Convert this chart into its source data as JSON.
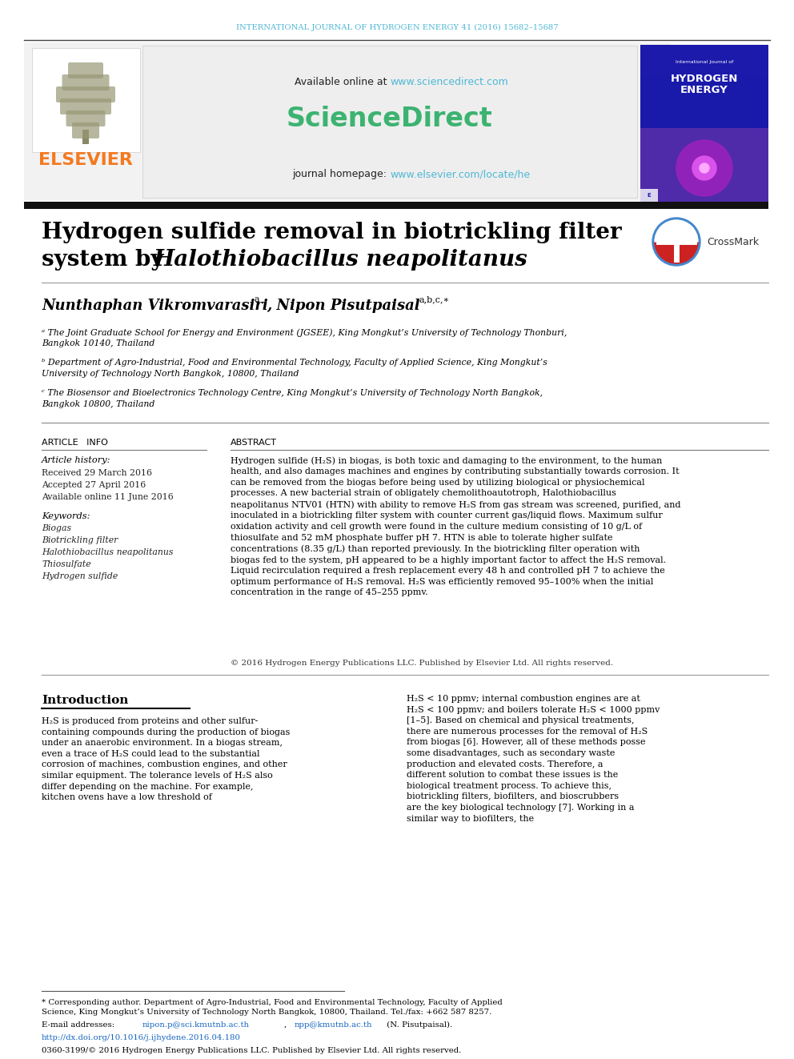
{
  "journal_header": "INTERNATIONAL JOURNAL OF HYDROGEN ENERGY 41 (2016) 15682–15687",
  "journal_header_color": "#4db8d4",
  "sciencedirect_url": "www.sciencedirect.com",
  "sciencedirect_logo_color": "#3cb371",
  "journal_homepage_url": "www.elsevier.com/locate/he",
  "elsevier_text": "ELSEVIER",
  "elsevier_color": "#f47920",
  "header_box_bg": "#f0f0f0",
  "title_line1": "Hydrogen sulfide removal in biotrickling filter",
  "title_line2": "system by ",
  "title_italic": "Halothiobacillus neapolitanus",
  "affil_a": "ᵃ The Joint Graduate School for Energy and Environment (JGSEE), King Mongkut’s University of Technology Thonburi,\nBangkok 10140, Thailand",
  "affil_b": "ᵇ Department of Agro-Industrial, Food and Environmental Technology, Faculty of Applied Science, King Mongkut’s\nUniversity of Technology North Bangkok, 10800, Thailand",
  "affil_c": "ᶜ The Biosensor and Bioelectronics Technology Centre, King Mongkut’s University of Technology North Bangkok,\nBangkok 10800, Thailand",
  "article_info_title": "ARTICLE   INFO",
  "article_history_title": "Article history:",
  "received": "Received 29 March 2016",
  "accepted": "Accepted 27 April 2016",
  "available": "Available online 11 June 2016",
  "keywords_title": "Keywords:",
  "keywords": [
    "Biogas",
    "Biotrickling filter",
    "Halothiobacillus neapolitanus",
    "Thiosulfate",
    "Hydrogen sulfide"
  ],
  "abstract_title": "ABSTRACT",
  "abstract_text": "Hydrogen sulfide (H₂S) in biogas, is both toxic and damaging to the environment, to the human health, and also damages machines and engines by contributing substantially towards corrosion. It can be removed from the biogas before being used by utilizing biological or physiochemical processes. A new bacterial strain of obligately chemolithoautotroph, Halothiobacillus neapolitanus NTV01 (HTN) with ability to remove H₂S from gas stream was screened, purified, and inoculated in a biotrickling filter system with counter current gas/liquid flows. Maximum sulfur oxidation activity and cell growth were found in the culture medium consisting of 10 g/L of thiosulfate and 52 mM phosphate buffer pH 7. HTN is able to tolerate higher sulfate concentrations (8.35 g/L) than reported previously. In the biotrickling filter operation with biogas fed to the system, pH appeared to be a highly important factor to affect the H₂S removal. Liquid recirculation required a fresh replacement every 48 h and controlled pH 7 to achieve the optimum performance of H₂S removal. H₂S was efficiently removed 95–100% when the initial concentration in the range of 45–255 ppmv.",
  "copyright_text": "© 2016 Hydrogen Energy Publications LLC. Published by Elsevier Ltd. All rights reserved.",
  "intro_title": "Introduction",
  "intro_col1": "H₂S is produced from proteins and other sulfur-containing compounds during the production of biogas under an anaerobic environment. In a biogas stream, even a trace of H₂S could lead to the substantial corrosion of machines, combustion engines, and other similar equipment. The tolerance levels of H₂S also differ depending on the machine. For example, kitchen ovens have a low threshold of",
  "intro_col2": "H₂S < 10 ppmv; internal combustion engines are at H₂S < 100 ppmv; and boilers tolerate H₂S < 1000 ppmv [1–5]. Based on chemical and physical treatments, there are numerous processes for the removal of H₂S from biogas [6]. However, all of these methods posse some disadvantages, such as secondary waste production and elevated costs. Therefore, a different solution to combat these issues is the biological treatment process. To achieve this, biotrickling filters, biofilters, and bioscrubbers are the key biological technology [7]. Working in a similar way to biofilters, the",
  "footnote_star": "* Corresponding author. Department of Agro-Industrial, Food and Environmental Technology, Faculty of Applied Science, King Mongkut’s University of Technology North Bangkok, 10800, Thailand. Tel./fax: +662 587 8257.",
  "footnote_email_prefix": "E-mail addresses: ",
  "footnote_email1": "nipon.p@sci.kmutnb.ac.th",
  "footnote_email2": "npp@kmutnb.ac.th",
  "footnote_email_suffix": " (N. Pisutpaisal).",
  "footnote_doi": "http://dx.doi.org/10.1016/j.ijhydene.2016.04.180",
  "footnote_issn": "0360-3199/© 2016 Hydrogen Energy Publications LLC. Published by Elsevier Ltd. All rights reserved.",
  "link_color": "#4db8d4",
  "link_color2": "#1565C0",
  "background_color": "#ffffff"
}
